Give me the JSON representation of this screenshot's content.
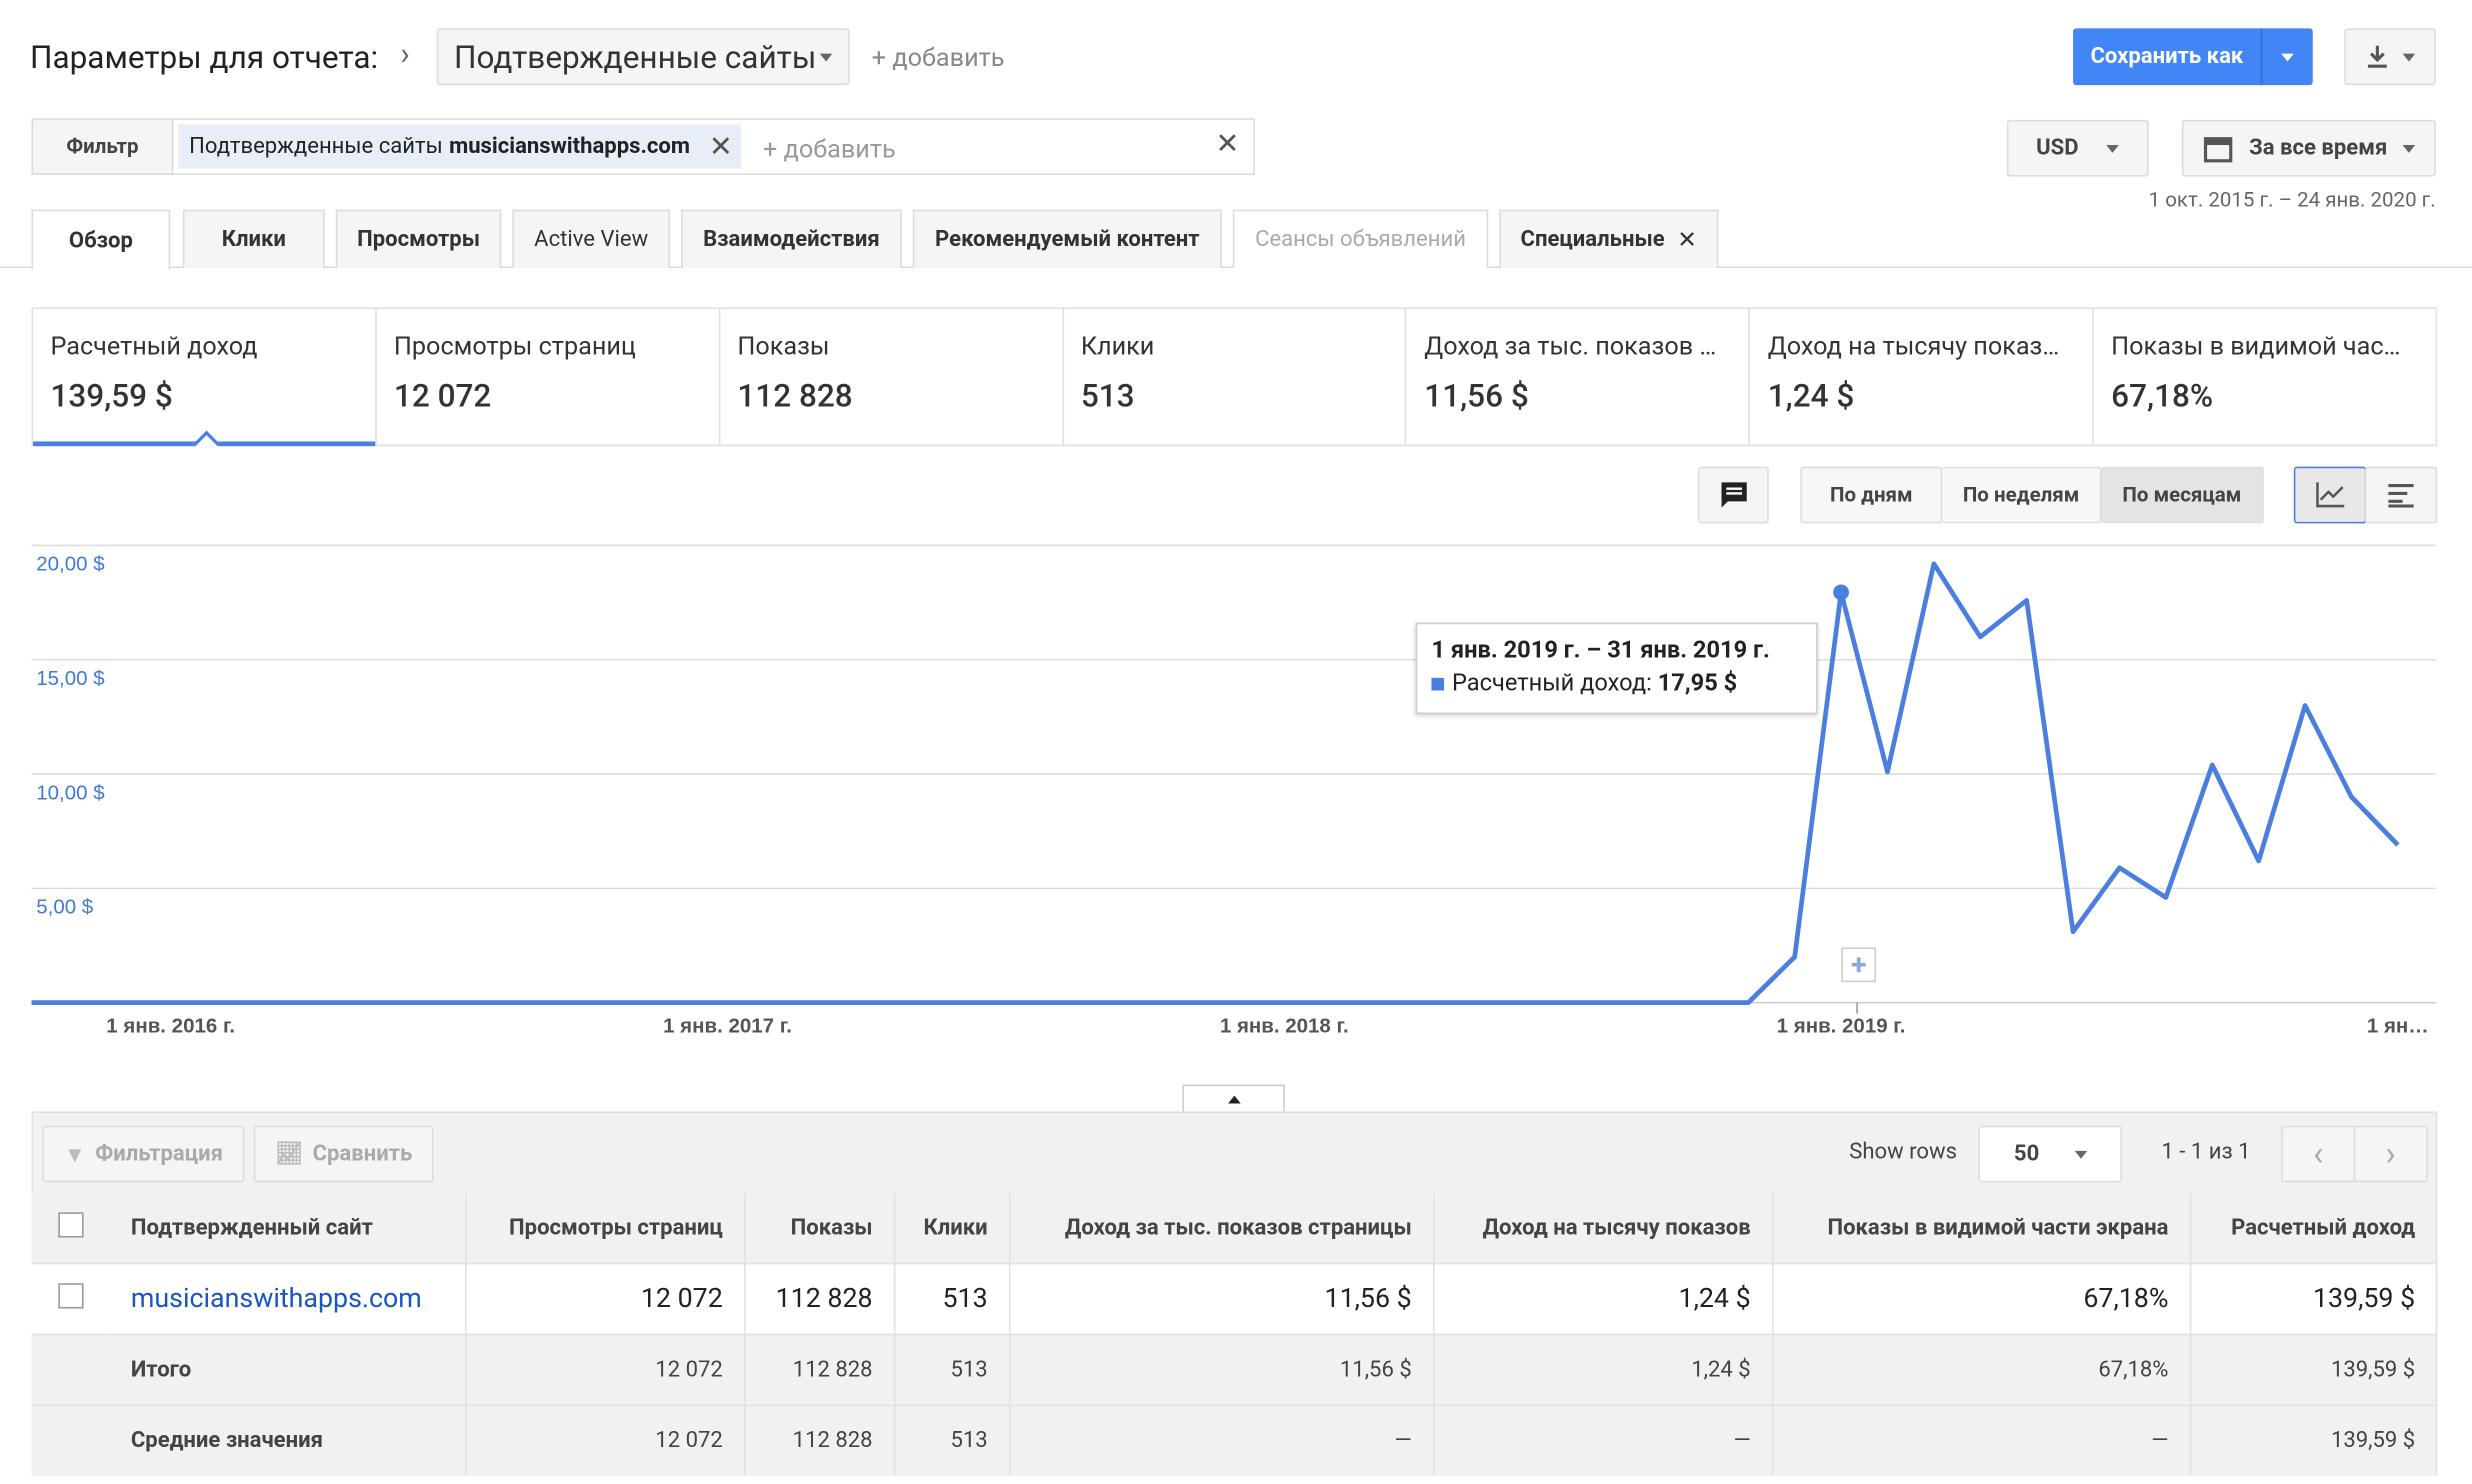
{
  "header": {
    "title": "Параметры для отчета:",
    "dimension": "Подтвержденные сайты",
    "add": "+ добавить",
    "save": "Сохранить как"
  },
  "filter": {
    "label": "Фильтр",
    "chip_name": "Подтвержденные сайты",
    "chip_value": "musicianswithapps.com",
    "add": "+ добавить"
  },
  "currency": "USD",
  "date_preset": "За все время",
  "date_range": "1 окт. 2015 г. – 24 янв. 2020 г.",
  "tabs": [
    "Обзор",
    "Клики",
    "Просмотры",
    "Active View",
    "Взаимодействия",
    "Рекомендуемый контент",
    "Сеансы объявлений",
    "Специальные"
  ],
  "metrics": [
    {
      "label": "Расчетный доход",
      "value": "139,59 $"
    },
    {
      "label": "Просмотры страниц",
      "value": "12 072"
    },
    {
      "label": "Показы",
      "value": "112 828"
    },
    {
      "label": "Клики",
      "value": "513"
    },
    {
      "label": "Доход за тыс. показов …",
      "value": "11,56 $"
    },
    {
      "label": "Доход на тысячу показ…",
      "value": "1,24 $"
    },
    {
      "label": "Показы в видимой час…",
      "value": "67,18%"
    }
  ],
  "granularity": [
    "По дням",
    "По неделям",
    "По месяцам"
  ],
  "chart_data": {
    "type": "line",
    "color": "#4a7fe0",
    "categories": [
      null,
      null,
      null,
      "1 янв. 2016 г.",
      null,
      null,
      null,
      null,
      null,
      null,
      null,
      null,
      null,
      null,
      null,
      "1 янв. 2017 г.",
      null,
      null,
      null,
      null,
      null,
      null,
      null,
      null,
      null,
      null,
      null,
      "1 янв. 2018 г.",
      null,
      null,
      null,
      null,
      null,
      null,
      null,
      null,
      null,
      null,
      null,
      "1 янв. 2019 г.",
      null,
      null,
      null,
      null,
      null,
      null,
      null,
      null,
      null,
      null,
      null,
      "1 ян…"
    ],
    "values": [
      0,
      0,
      0,
      0,
      0,
      0,
      0,
      0,
      0,
      0,
      0,
      0,
      0,
      0,
      0,
      0,
      0,
      0,
      0,
      0,
      0,
      0,
      0,
      0,
      0,
      0,
      0,
      0,
      0,
      0,
      0,
      0,
      0,
      0,
      0,
      0,
      0,
      0,
      2.0,
      17.95,
      10.1,
      19.2,
      16.0,
      17.6,
      3.1,
      5.9,
      4.6,
      10.4,
      6.2,
      13.0,
      9.0,
      6.9
    ],
    "ylim": [
      0,
      20
    ],
    "yticks": [
      {
        "value": 5,
        "label": "5,00 $"
      },
      {
        "value": 10,
        "label": "10,00 $"
      },
      {
        "value": 15,
        "label": "15,00 $"
      },
      {
        "value": 20,
        "label": "20,00 $"
      }
    ],
    "grid": true,
    "tooltip": {
      "title": "1 янв. 2019 г. – 31 янв. 2019 г.",
      "label": "Расчетный доход:",
      "value": "17,95 $"
    }
  },
  "table": {
    "toolbar": [
      "Фильтрация",
      "Сравнить"
    ],
    "show_rows_label": "Show rows",
    "show_rows": "50",
    "pagination": "1 - 1 из 1",
    "columns": [
      "Подтвержденный сайт",
      "Просмотры страниц",
      "Показы",
      "Клики",
      "Доход за тыс. показов страницы",
      "Доход на тысячу показов",
      "Показы в видимой части экрана",
      "Расчетный доход"
    ],
    "rows": [
      [
        "musicianswithapps.com",
        "12 072",
        "112 828",
        "513",
        "11,56 $",
        "1,24 $",
        "67,18%",
        "139,59 $"
      ],
      [
        "Итого",
        "12 072",
        "112 828",
        "513",
        "11,56 $",
        "1,24 $",
        "67,18%",
        "139,59 $"
      ],
      [
        "Средние значения",
        "12 072",
        "112 828",
        "513",
        "—",
        "—",
        "—",
        "139,59 $"
      ]
    ]
  }
}
